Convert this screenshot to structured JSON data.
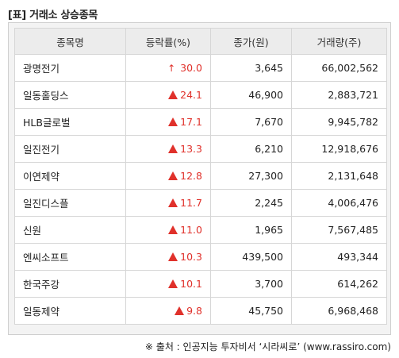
{
  "caption": "[표] 거래소 상승종목",
  "headers": [
    "종목명",
    "등락률(%)",
    "종가(원)",
    "거래량(주)"
  ],
  "rows": [
    {
      "name": "광명전기",
      "marker": "↑",
      "rate": "30.0",
      "close": "3,645",
      "volume": "66,002,562"
    },
    {
      "name": "일동홀딩스",
      "marker": "▲",
      "rate": "24.1",
      "close": "46,900",
      "volume": "2,883,721"
    },
    {
      "name": "HLB글로벌",
      "marker": "▲",
      "rate": "17.1",
      "close": "7,670",
      "volume": "9,945,782"
    },
    {
      "name": "일진전기",
      "marker": "▲",
      "rate": "13.3",
      "close": "6,210",
      "volume": "12,918,676"
    },
    {
      "name": "이연제약",
      "marker": "▲",
      "rate": "12.8",
      "close": "27,300",
      "volume": "2,131,648"
    },
    {
      "name": "일진디스플",
      "marker": "▲",
      "rate": "11.7",
      "close": "2,245",
      "volume": "4,006,476"
    },
    {
      "name": "신원",
      "marker": "▲",
      "rate": "11.0",
      "close": "1,965",
      "volume": "7,567,485"
    },
    {
      "name": "엔씨소프트",
      "marker": "▲",
      "rate": "10.3",
      "close": "439,500",
      "volume": "493,344"
    },
    {
      "name": "한국주강",
      "marker": "▲",
      "rate": "10.1",
      "close": "3,700",
      "volume": "614,262"
    },
    {
      "name": "일동제약",
      "marker": "▲",
      "rate": "9.8",
      "close": "45,750",
      "volume": "6,968,468"
    }
  ],
  "source": "※ 출처 : 인공지능 투자비서 ‘시라씨로’ (www.rassiro.com)",
  "colors": {
    "rise": "#e0312b",
    "header_bg": "#ececec",
    "border": "#d6d6d6"
  }
}
